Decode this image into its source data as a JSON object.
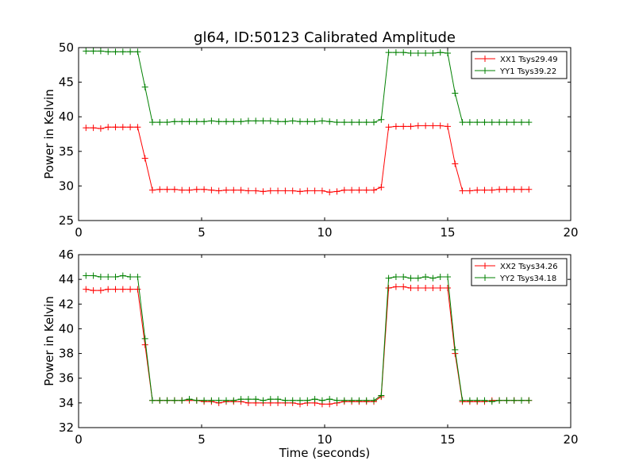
{
  "chart_data": [
    {
      "type": "line",
      "title": "gl64, ID:50123 Calibrated Amplitude",
      "xlabel": "",
      "ylabel": "Power in Kelvin",
      "xlim": [
        0,
        20
      ],
      "ylim": [
        25,
        50
      ],
      "xticks": [
        "0",
        "5",
        "10",
        "15",
        "20"
      ],
      "yticks": [
        "25",
        "30",
        "35",
        "40",
        "45",
        "50"
      ],
      "legend_position": "top-right",
      "x": [
        0.3,
        0.6,
        0.9,
        1.2,
        1.5,
        1.8,
        2.1,
        2.4,
        2.7,
        3.0,
        3.3,
        3.6,
        3.9,
        4.2,
        4.5,
        4.8,
        5.1,
        5.4,
        5.7,
        6.0,
        6.3,
        6.6,
        6.9,
        7.2,
        7.5,
        7.8,
        8.1,
        8.4,
        8.7,
        9.0,
        9.3,
        9.6,
        9.9,
        10.2,
        10.5,
        10.8,
        11.1,
        11.4,
        11.7,
        12.0,
        12.3,
        12.6,
        12.9,
        13.2,
        13.5,
        13.8,
        14.1,
        14.4,
        14.7,
        15.0,
        15.3,
        15.6,
        15.9,
        16.2,
        16.5,
        16.8,
        17.1,
        17.4,
        17.7,
        18.0,
        18.3
      ],
      "series": [
        {
          "name": "XX1 Tsys29.49",
          "color": "#ff0000",
          "values": [
            38.4,
            38.4,
            38.3,
            38.5,
            38.5,
            38.5,
            38.5,
            38.5,
            34.0,
            29.4,
            29.5,
            29.5,
            29.5,
            29.4,
            29.4,
            29.5,
            29.5,
            29.4,
            29.3,
            29.4,
            29.4,
            29.4,
            29.3,
            29.3,
            29.2,
            29.3,
            29.3,
            29.3,
            29.3,
            29.2,
            29.3,
            29.3,
            29.3,
            29.1,
            29.2,
            29.4,
            29.4,
            29.4,
            29.4,
            29.4,
            29.8,
            38.5,
            38.6,
            38.6,
            38.6,
            38.7,
            38.7,
            38.7,
            38.7,
            38.6,
            33.2,
            29.3,
            29.3,
            29.4,
            29.4,
            29.4,
            29.5,
            29.5,
            29.5,
            29.5,
            29.5
          ]
        },
        {
          "name": "YY1 Tsys39.22",
          "color": "#008000",
          "values": [
            49.5,
            49.5,
            49.5,
            49.4,
            49.4,
            49.4,
            49.4,
            49.4,
            44.3,
            39.2,
            39.2,
            39.2,
            39.3,
            39.3,
            39.3,
            39.3,
            39.3,
            39.4,
            39.3,
            39.3,
            39.3,
            39.3,
            39.4,
            39.4,
            39.4,
            39.4,
            39.3,
            39.3,
            39.4,
            39.3,
            39.3,
            39.3,
            39.4,
            39.3,
            39.2,
            39.2,
            39.2,
            39.2,
            39.2,
            39.2,
            39.6,
            49.3,
            49.3,
            49.3,
            49.2,
            49.2,
            49.2,
            49.2,
            49.3,
            49.2,
            43.4,
            39.2,
            39.2,
            39.2,
            39.2,
            39.2,
            39.2,
            39.2,
            39.2,
            39.2,
            39.2
          ]
        }
      ]
    },
    {
      "type": "line",
      "title": "",
      "xlabel": "Time (seconds)",
      "ylabel": "Power in Kelvin",
      "xlim": [
        0,
        20
      ],
      "ylim": [
        32,
        46
      ],
      "xticks": [
        "0",
        "5",
        "10",
        "15",
        "20"
      ],
      "yticks": [
        "32",
        "34",
        "36",
        "38",
        "40",
        "42",
        "44",
        "46"
      ],
      "legend_position": "top-right",
      "x": [
        0.3,
        0.6,
        0.9,
        1.2,
        1.5,
        1.8,
        2.1,
        2.4,
        2.7,
        3.0,
        3.3,
        3.6,
        3.9,
        4.2,
        4.5,
        4.8,
        5.1,
        5.4,
        5.7,
        6.0,
        6.3,
        6.6,
        6.9,
        7.2,
        7.5,
        7.8,
        8.1,
        8.4,
        8.7,
        9.0,
        9.3,
        9.6,
        9.9,
        10.2,
        10.5,
        10.8,
        11.1,
        11.4,
        11.7,
        12.0,
        12.3,
        12.6,
        12.9,
        13.2,
        13.5,
        13.8,
        14.1,
        14.4,
        14.7,
        15.0,
        15.3,
        15.6,
        15.9,
        16.2,
        16.5,
        16.8,
        17.1,
        17.4,
        17.7,
        18.0,
        18.3
      ],
      "series": [
        {
          "name": "XX2 Tsys34.26",
          "color": "#ff0000",
          "values": [
            43.2,
            43.1,
            43.1,
            43.2,
            43.2,
            43.2,
            43.2,
            43.2,
            38.7,
            34.2,
            34.2,
            34.2,
            34.2,
            34.2,
            34.2,
            34.2,
            34.1,
            34.1,
            34.0,
            34.1,
            34.1,
            34.1,
            34.0,
            34.0,
            34.0,
            34.0,
            34.0,
            34.0,
            34.0,
            33.9,
            34.0,
            34.0,
            33.9,
            33.9,
            34.0,
            34.1,
            34.1,
            34.1,
            34.1,
            34.1,
            34.5,
            43.3,
            43.4,
            43.4,
            43.3,
            43.3,
            43.3,
            43.3,
            43.3,
            43.3,
            38.0,
            34.1,
            34.1,
            34.1,
            34.1,
            34.2,
            34.2,
            34.2,
            34.2,
            34.2,
            34.2
          ]
        },
        {
          "name": "YY2 Tsys34.18",
          "color": "#008000",
          "values": [
            44.3,
            44.3,
            44.2,
            44.2,
            44.2,
            44.3,
            44.2,
            44.2,
            39.2,
            34.2,
            34.2,
            34.2,
            34.2,
            34.2,
            34.3,
            34.2,
            34.2,
            34.2,
            34.2,
            34.2,
            34.2,
            34.3,
            34.3,
            34.3,
            34.2,
            34.3,
            34.3,
            34.2,
            34.2,
            34.2,
            34.2,
            34.3,
            34.2,
            34.3,
            34.2,
            34.2,
            34.2,
            34.2,
            34.2,
            34.2,
            34.6,
            44.1,
            44.2,
            44.2,
            44.1,
            44.1,
            44.2,
            44.1,
            44.2,
            44.2,
            38.3,
            34.2,
            34.2,
            34.2,
            34.2,
            34.1,
            34.2,
            34.2,
            34.2,
            34.2,
            34.2
          ]
        }
      ]
    }
  ]
}
